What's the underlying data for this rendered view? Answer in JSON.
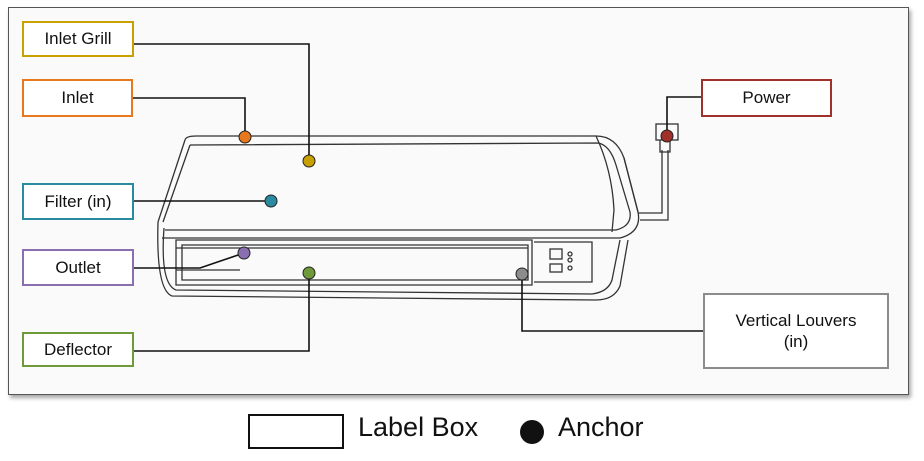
{
  "labels": {
    "inlet_grill": {
      "text": "Inlet Grill",
      "color": "#c8a000"
    },
    "inlet": {
      "text": "Inlet",
      "color": "#e8781e"
    },
    "filter": {
      "text": "Filter (in)",
      "color": "#2a8aa0"
    },
    "outlet": {
      "text": "Outlet",
      "color": "#8a6fb0"
    },
    "deflector": {
      "text": "Deflector",
      "color": "#6f9a3a"
    },
    "power": {
      "text": "Power",
      "color": "#a0302a"
    },
    "vertical_louvers": {
      "text": "Vertical Louvers\n(in)",
      "color": "#8c8c8c"
    }
  },
  "legend": {
    "label_box": "Label Box",
    "anchor": "Anchor"
  },
  "colors": {
    "line": "#111111",
    "device_outline": "#333333",
    "frame_border": "#555555"
  }
}
